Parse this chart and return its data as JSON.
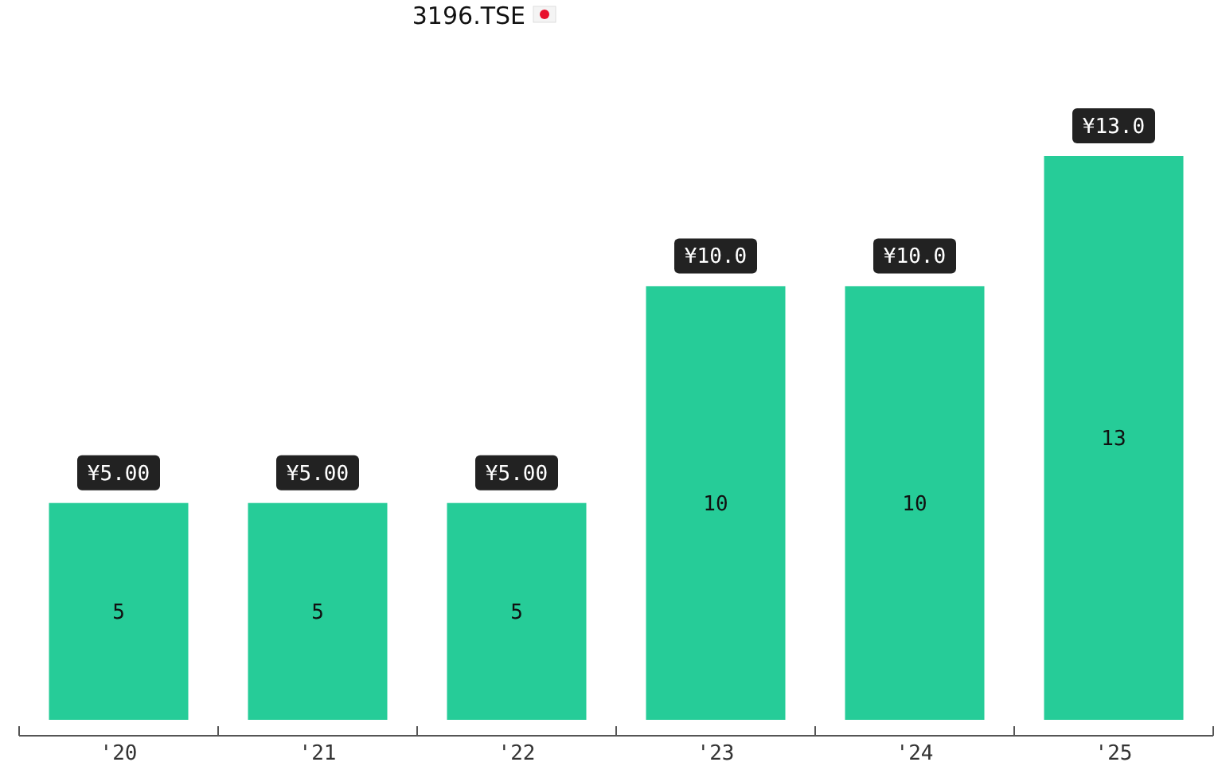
{
  "chart_data": {
    "type": "bar",
    "title": "3196.TSE",
    "categories": [
      "'20",
      "'21",
      "'22",
      "'23",
      "'24",
      "'25"
    ],
    "values": [
      5,
      5,
      5,
      10,
      10,
      13
    ],
    "color": "#26cc98",
    "data_labels": true,
    "annotations": [
      {
        "text": "¥5.00",
        "x": "'20",
        "y": 5
      },
      {
        "text": "¥5.00",
        "x": "'21",
        "y": 5
      },
      {
        "text": "¥5.00",
        "x": "'22",
        "y": 5
      },
      {
        "text": "¥10.0",
        "x": "'23",
        "y": 10
      },
      {
        "text": "¥10.0",
        "x": "'24",
        "y": 10
      },
      {
        "text": "¥13.0",
        "x": "'25",
        "y": 13
      }
    ]
  }
}
